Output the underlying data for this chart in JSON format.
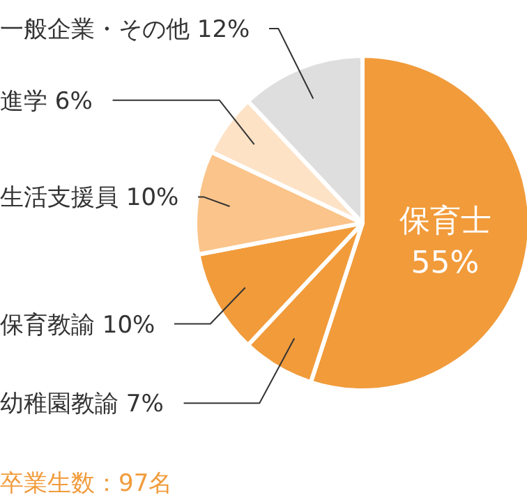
{
  "chart_data": {
    "type": "pie",
    "categories": [
      "保育士",
      "幼稚園教諭",
      "保育教諭",
      "生活支援員",
      "進学",
      "一般企業・その他"
    ],
    "values": [
      55,
      7,
      10,
      10,
      6,
      12
    ],
    "value_labels": [
      "55%",
      "7%",
      "10%",
      "10%",
      "6%",
      "12%"
    ],
    "colors": [
      "#f19b3b",
      "#f19b3b",
      "#f19b3b",
      "#fbc48a",
      "#fde2c6",
      "#dedede"
    ],
    "annotations": [
      "卒業生数：97名"
    ]
  }
}
